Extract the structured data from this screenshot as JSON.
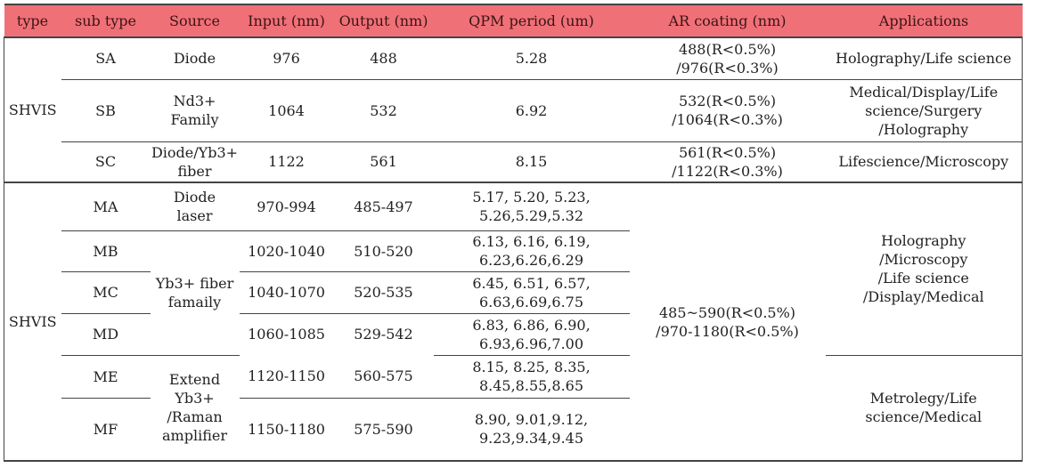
{
  "headers": [
    "type",
    "sub type",
    "Source",
    "Input (nm)",
    "Output (nm)",
    "QPM period (um)",
    "AR coating (nm)",
    "Applications"
  ],
  "groups": [
    {
      "type": "SHVIS",
      "rows": [
        {
          "sub": "SA",
          "source": [
            "Diode"
          ],
          "input": "976",
          "output": "488",
          "qpm": [
            "5.28"
          ],
          "ar": [
            "488(R<0.5%)",
            "/976(R<0.3%)"
          ],
          "app": [
            "Holography/Life science"
          ]
        },
        {
          "sub": "SB",
          "source": [
            "Nd3+",
            "Family"
          ],
          "input": "1064",
          "output": "532",
          "qpm": [
            "6.92"
          ],
          "ar": [
            "532(R<0.5%)",
            "/1064(R<0.3%)"
          ],
          "app": [
            "Medical/Display/Life",
            "science/Surgery",
            "/Holography"
          ]
        },
        {
          "sub": "SC",
          "source": [
            "Diode/Yb3+",
            "fiber"
          ],
          "input": "1122",
          "output": "561",
          "qpm": [
            "8.15"
          ],
          "ar": [
            "561(R<0.5%)",
            "/1122(R<0.3%)"
          ],
          "app": [
            "Lifescience/Microscopy"
          ]
        }
      ]
    },
    {
      "type": "SHVIS",
      "ar": [
        "485~590(R<0.5%)",
        "/970-1180(R<0.5%)"
      ],
      "app_a": [
        "Holography",
        "/Microscopy",
        "/Life science",
        "/Display/Medical"
      ],
      "app_b": [
        "Metrolegy/Life",
        "science/Medical"
      ],
      "source_ma": [
        "Diode",
        "laser"
      ],
      "source_mbd": [
        "Yb3+ fiber",
        "famaily"
      ],
      "source_mef": [
        "Extend",
        "Yb3+",
        "/Raman",
        "amplifier"
      ],
      "rows": [
        {
          "sub": "MA",
          "input": "970-994",
          "output": "485-497",
          "qpm": [
            "5.17, 5.20, 5.23,",
            "5.26,5.29,5.32"
          ]
        },
        {
          "sub": "MB",
          "input": "1020-1040",
          "output": "510-520",
          "qpm": [
            "6.13, 6.16, 6.19,",
            "6.23,6.26,6.29"
          ]
        },
        {
          "sub": "MC",
          "input": "1040-1070",
          "output": "520-535",
          "qpm": [
            "6.45, 6.51, 6.57,",
            "6.63,6.69,6.75"
          ]
        },
        {
          "sub": "MD",
          "input": "1060-1085",
          "output": "529-542",
          "qpm": [
            "6.83, 6.86, 6.90,",
            "6.93,6.96,7.00"
          ]
        },
        {
          "sub": "ME",
          "input": "1120-1150",
          "output": "560-575",
          "qpm": [
            "8.15, 8.25, 8.35,",
            "8.45,8.55,8.65"
          ]
        },
        {
          "sub": "MF",
          "input": "1150-1180",
          "output": "575-590",
          "qpm": [
            "8.90, 9.01,9.12,",
            "9.23,9.34,9.45"
          ]
        }
      ]
    }
  ]
}
